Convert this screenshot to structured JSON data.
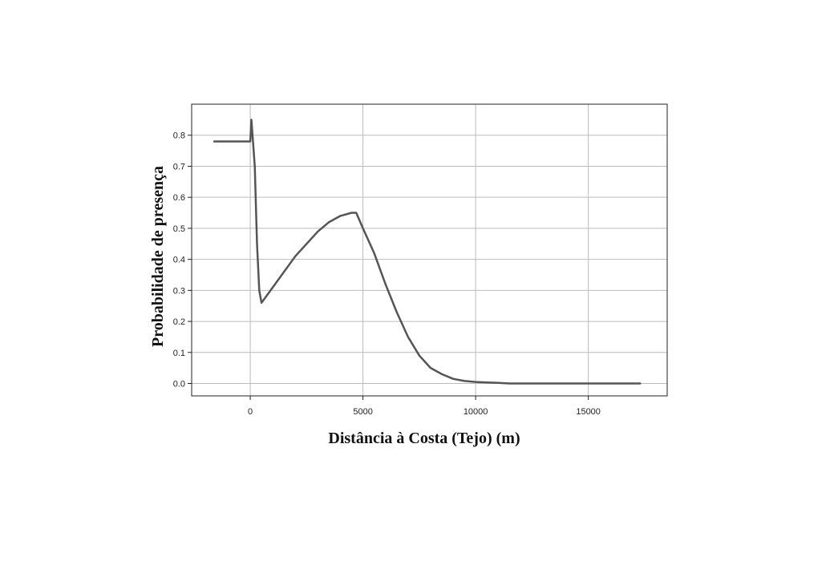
{
  "chart_data": {
    "type": "line",
    "title": "",
    "xlabel": "Distância à Costa (Tejo) (m)",
    "ylabel": "Probabilidade de presença",
    "xlim": [
      -2600,
      18500
    ],
    "ylim": [
      -0.04,
      0.9
    ],
    "x_ticks": [
      0,
      5000,
      10000,
      15000
    ],
    "x_tick_labels": [
      "0",
      "5000",
      "10000",
      "15000"
    ],
    "y_ticks": [
      0.0,
      0.1,
      0.2,
      0.3,
      0.4,
      0.5,
      0.6,
      0.7,
      0.8
    ],
    "y_tick_labels": [
      "0.0",
      "0.1",
      "0.2",
      "0.3",
      "0.4",
      "0.5",
      "0.6",
      "0.7",
      "0.8"
    ],
    "grid": true,
    "legend": "none",
    "line_color": "#555555",
    "series": [
      {
        "x": [
          -1600,
          -100,
          0,
          50,
          100,
          200,
          300,
          400,
          500,
          600,
          1000,
          1500,
          2000,
          2500,
          3000,
          3500,
          4000,
          4500,
          4700,
          5000,
          5500,
          6000,
          6500,
          7000,
          7500,
          8000,
          8500,
          9000,
          9500,
          10000,
          10500,
          11000,
          11500,
          12000,
          13000,
          14000,
          15000,
          16000,
          17300
        ],
        "y": [
          0.78,
          0.78,
          0.78,
          0.85,
          0.8,
          0.7,
          0.45,
          0.3,
          0.26,
          0.27,
          0.31,
          0.36,
          0.41,
          0.45,
          0.49,
          0.52,
          0.54,
          0.55,
          0.55,
          0.5,
          0.42,
          0.32,
          0.23,
          0.15,
          0.09,
          0.05,
          0.03,
          0.015,
          0.008,
          0.005,
          0.003,
          0.002,
          0.0,
          0.0,
          0.0,
          0.0,
          0.0,
          0.0,
          0.0
        ]
      }
    ]
  }
}
